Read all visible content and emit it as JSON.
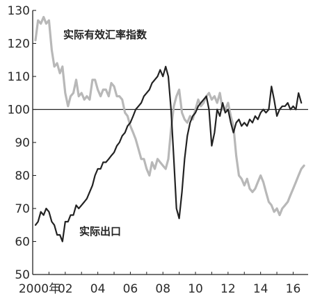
{
  "chart_data": {
    "type": "line",
    "title": "",
    "xlabel": "",
    "ylabel": "",
    "xlim": [
      2000.0,
      2016.92
    ],
    "ylim": [
      50,
      130
    ],
    "y_ticks": [
      50,
      60,
      70,
      80,
      90,
      100,
      110,
      120,
      130
    ],
    "y_tick_labels": [
      "50",
      "60",
      "70",
      "80",
      "90",
      "100",
      "110",
      "120",
      "130"
    ],
    "x_ticks": [
      2000,
      2002,
      2004,
      2006,
      2008,
      2010,
      2012,
      2014,
      2016
    ],
    "x_tick_labels": [
      "2000年",
      "02",
      "04",
      "06",
      "08",
      "10",
      "12",
      "14",
      "16"
    ],
    "reference_line": 100,
    "grid": false,
    "legend": "none (series labelled directly on the chart)",
    "colors": {
      "axis": "#222222",
      "ref_line": "#222222"
    },
    "series": [
      {
        "name": "实际有效汇率指数",
        "color": "#b8b8b8",
        "label_position": "top-left",
        "points": [
          [
            2000.17,
            121
          ],
          [
            2000.33,
            127
          ],
          [
            2000.5,
            126
          ],
          [
            2000.67,
            128
          ],
          [
            2000.83,
            126
          ],
          [
            2001.0,
            127
          ],
          [
            2001.17,
            118
          ],
          [
            2001.33,
            113
          ],
          [
            2001.5,
            114
          ],
          [
            2001.67,
            111
          ],
          [
            2001.83,
            113
          ],
          [
            2002.0,
            105
          ],
          [
            2002.17,
            101
          ],
          [
            2002.33,
            104
          ],
          [
            2002.5,
            105
          ],
          [
            2002.67,
            109
          ],
          [
            2002.83,
            104
          ],
          [
            2003.0,
            105
          ],
          [
            2003.17,
            103
          ],
          [
            2003.33,
            104
          ],
          [
            2003.5,
            103
          ],
          [
            2003.67,
            109
          ],
          [
            2003.83,
            109
          ],
          [
            2004.0,
            106
          ],
          [
            2004.17,
            104
          ],
          [
            2004.33,
            106
          ],
          [
            2004.5,
            106
          ],
          [
            2004.67,
            104
          ],
          [
            2004.83,
            108
          ],
          [
            2005.0,
            107
          ],
          [
            2005.17,
            104
          ],
          [
            2005.33,
            104
          ],
          [
            2005.5,
            103
          ],
          [
            2005.67,
            99
          ],
          [
            2005.83,
            98
          ],
          [
            2006.0,
            95
          ],
          [
            2006.17,
            93
          ],
          [
            2006.33,
            91
          ],
          [
            2006.5,
            88
          ],
          [
            2006.67,
            85
          ],
          [
            2006.83,
            85
          ],
          [
            2007.0,
            82
          ],
          [
            2007.17,
            80
          ],
          [
            2007.33,
            84
          ],
          [
            2007.5,
            82
          ],
          [
            2007.67,
            85
          ],
          [
            2007.83,
            84
          ],
          [
            2008.0,
            83
          ],
          [
            2008.17,
            82
          ],
          [
            2008.33,
            85
          ],
          [
            2008.5,
            94
          ],
          [
            2008.67,
            101
          ],
          [
            2008.83,
            104
          ],
          [
            2009.0,
            106
          ],
          [
            2009.17,
            99
          ],
          [
            2009.33,
            97
          ],
          [
            2009.5,
            96
          ],
          [
            2009.67,
            98
          ],
          [
            2009.83,
            97
          ],
          [
            2010.0,
            100
          ],
          [
            2010.17,
            103
          ],
          [
            2010.33,
            101
          ],
          [
            2010.5,
            102
          ],
          [
            2010.67,
            104
          ],
          [
            2010.83,
            105
          ],
          [
            2011.0,
            103
          ],
          [
            2011.17,
            104
          ],
          [
            2011.33,
            102
          ],
          [
            2011.5,
            105
          ],
          [
            2011.67,
            100
          ],
          [
            2011.83,
            100
          ],
          [
            2012.0,
            102
          ],
          [
            2012.17,
            98
          ],
          [
            2012.33,
            95
          ],
          [
            2012.5,
            86
          ],
          [
            2012.67,
            80
          ],
          [
            2012.83,
            79
          ],
          [
            2013.0,
            77
          ],
          [
            2013.17,
            79
          ],
          [
            2013.33,
            76
          ],
          [
            2013.5,
            75
          ],
          [
            2013.67,
            76
          ],
          [
            2013.83,
            78
          ],
          [
            2014.0,
            80
          ],
          [
            2014.17,
            78
          ],
          [
            2014.33,
            75
          ],
          [
            2014.5,
            72
          ],
          [
            2014.67,
            71
          ],
          [
            2014.83,
            69
          ],
          [
            2015.0,
            70
          ],
          [
            2015.17,
            68
          ],
          [
            2015.33,
            70
          ],
          [
            2015.5,
            71
          ],
          [
            2015.67,
            72
          ],
          [
            2015.83,
            74
          ],
          [
            2016.0,
            76
          ],
          [
            2016.17,
            78
          ],
          [
            2016.33,
            80
          ],
          [
            2016.5,
            82
          ],
          [
            2016.67,
            83
          ]
        ]
      },
      {
        "name": "实际出口",
        "color": "#222222",
        "label_position": "bottom-left",
        "points": [
          [
            2000.17,
            65
          ],
          [
            2000.33,
            66
          ],
          [
            2000.5,
            69
          ],
          [
            2000.67,
            68
          ],
          [
            2000.83,
            70
          ],
          [
            2001.0,
            69
          ],
          [
            2001.17,
            66
          ],
          [
            2001.33,
            65
          ],
          [
            2001.5,
            62
          ],
          [
            2001.67,
            62
          ],
          [
            2001.83,
            60
          ],
          [
            2002.0,
            66
          ],
          [
            2002.17,
            66
          ],
          [
            2002.33,
            68
          ],
          [
            2002.5,
            68
          ],
          [
            2002.67,
            71
          ],
          [
            2002.83,
            70
          ],
          [
            2003.0,
            71
          ],
          [
            2003.17,
            72
          ],
          [
            2003.33,
            73
          ],
          [
            2003.5,
            75
          ],
          [
            2003.67,
            77
          ],
          [
            2003.83,
            80
          ],
          [
            2004.0,
            82
          ],
          [
            2004.17,
            82
          ],
          [
            2004.33,
            84
          ],
          [
            2004.5,
            84
          ],
          [
            2004.67,
            85
          ],
          [
            2004.83,
            86
          ],
          [
            2005.0,
            87
          ],
          [
            2005.17,
            89
          ],
          [
            2005.33,
            90
          ],
          [
            2005.5,
            92
          ],
          [
            2005.67,
            93
          ],
          [
            2005.83,
            95
          ],
          [
            2006.0,
            96
          ],
          [
            2006.17,
            98
          ],
          [
            2006.33,
            100
          ],
          [
            2006.5,
            101
          ],
          [
            2006.67,
            102
          ],
          [
            2006.83,
            104
          ],
          [
            2007.0,
            105
          ],
          [
            2007.17,
            106
          ],
          [
            2007.33,
            108
          ],
          [
            2007.5,
            109
          ],
          [
            2007.67,
            110
          ],
          [
            2007.83,
            112
          ],
          [
            2008.0,
            110
          ],
          [
            2008.17,
            113
          ],
          [
            2008.33,
            110
          ],
          [
            2008.5,
            100
          ],
          [
            2008.67,
            85
          ],
          [
            2008.83,
            70
          ],
          [
            2009.0,
            67
          ],
          [
            2009.17,
            75
          ],
          [
            2009.33,
            85
          ],
          [
            2009.5,
            92
          ],
          [
            2009.67,
            96
          ],
          [
            2009.83,
            98
          ],
          [
            2010.0,
            99
          ],
          [
            2010.17,
            101
          ],
          [
            2010.33,
            102
          ],
          [
            2010.5,
            103
          ],
          [
            2010.67,
            104
          ],
          [
            2010.83,
            100
          ],
          [
            2011.0,
            89
          ],
          [
            2011.17,
            93
          ],
          [
            2011.33,
            100
          ],
          [
            2011.5,
            98
          ],
          [
            2011.67,
            102
          ],
          [
            2011.83,
            99
          ],
          [
            2012.0,
            100
          ],
          [
            2012.17,
            96
          ],
          [
            2012.33,
            93
          ],
          [
            2012.5,
            96
          ],
          [
            2012.67,
            97
          ],
          [
            2012.83,
            95
          ],
          [
            2013.0,
            96
          ],
          [
            2013.17,
            95
          ],
          [
            2013.33,
            97
          ],
          [
            2013.5,
            96
          ],
          [
            2013.67,
            98
          ],
          [
            2013.83,
            97
          ],
          [
            2014.0,
            99
          ],
          [
            2014.17,
            100
          ],
          [
            2014.33,
            99
          ],
          [
            2014.5,
            100
          ],
          [
            2014.67,
            107
          ],
          [
            2014.83,
            103
          ],
          [
            2015.0,
            98
          ],
          [
            2015.17,
            100
          ],
          [
            2015.33,
            101
          ],
          [
            2015.5,
            101
          ],
          [
            2015.67,
            102
          ],
          [
            2015.83,
            100
          ],
          [
            2016.0,
            101
          ],
          [
            2016.17,
            100
          ],
          [
            2016.33,
            105
          ],
          [
            2016.5,
            102
          ]
        ]
      }
    ]
  }
}
